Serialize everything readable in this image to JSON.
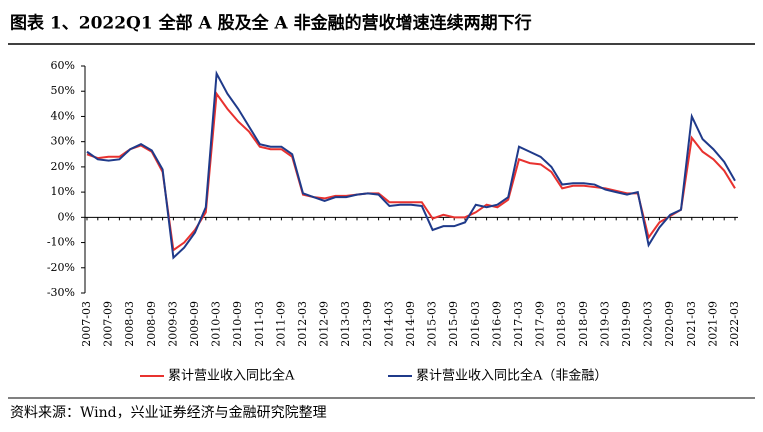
{
  "chart_data": {
    "type": "line",
    "title": "图表 1、2022Q1 全部 A 股及全 A 非金融的营收增速连续两期下行",
    "source": "资料来源：Wind，兴业证券经济与金融研究院整理",
    "categories": [
      "2007-03",
      null,
      "2007-09",
      null,
      "2008-03",
      null,
      "2008-09",
      null,
      "2009-03",
      null,
      "2009-09",
      null,
      "2010-03",
      null,
      "2010-09",
      null,
      "2011-03",
      null,
      "2011-09",
      null,
      "2012-03",
      null,
      "2012-09",
      null,
      "2013-03",
      null,
      "2013-09",
      null,
      "2014-03",
      null,
      "2014-09",
      null,
      "2015-03",
      null,
      "2015-09",
      null,
      "2016-03",
      null,
      "2016-09",
      null,
      "2017-03",
      null,
      "2017-09",
      null,
      "2018-03",
      null,
      "2018-09",
      null,
      "2019-03",
      null,
      "2019-09",
      null,
      "2020-03",
      null,
      "2020-09",
      null,
      "2021-03",
      null,
      "2021-09",
      null,
      "2022-03"
    ],
    "series": [
      {
        "name": "累计营业收入同比全A",
        "color": "#e8322f",
        "values": [
          25,
          23.5,
          24,
          24,
          27,
          28.5,
          26,
          18,
          -13,
          -10,
          -5,
          2,
          49,
          43,
          38,
          34,
          28,
          27,
          27,
          24,
          9,
          8,
          7.5,
          8.5,
          8.5,
          9,
          9.5,
          9.5,
          6,
          6,
          6,
          6,
          -0.5,
          1,
          0,
          0,
          2,
          5,
          4,
          7,
          23,
          21.5,
          21,
          18,
          11.5,
          12.5,
          12.5,
          12,
          11.5,
          10.5,
          9.5,
          9.5,
          -8,
          -2,
          0.5,
          3,
          31.5,
          26,
          23,
          18.5,
          11.5
        ]
      },
      {
        "name": "累计营业收入同比全A（非金融）",
        "color": "#1f3a8a",
        "values": [
          26,
          23,
          22.5,
          23,
          27,
          29,
          26.5,
          19,
          -16,
          -12,
          -6,
          4,
          57,
          49,
          43,
          36,
          29,
          28,
          28,
          25,
          9.5,
          8,
          6.5,
          8,
          8,
          9,
          9.5,
          9,
          4.5,
          5,
          5,
          4.5,
          -5,
          -3.5,
          -3.5,
          -2,
          5,
          4,
          5,
          8,
          28,
          26,
          24,
          20,
          13,
          13.5,
          13.5,
          13,
          11,
          10,
          9,
          10,
          -11,
          -4,
          1,
          3,
          40,
          31,
          27,
          22,
          14.5
        ]
      }
    ],
    "ylim": [
      -30,
      60
    ],
    "yticks": [
      {
        "value": -30,
        "label": "-30%"
      },
      {
        "value": -20,
        "label": "-20%"
      },
      {
        "value": -10,
        "label": "-10%"
      },
      {
        "value": 0,
        "label": "0%"
      },
      {
        "value": 10,
        "label": "10%"
      },
      {
        "value": 20,
        "label": "20%"
      },
      {
        "value": 30,
        "label": "30%"
      },
      {
        "value": 40,
        "label": "40%"
      },
      {
        "value": 50,
        "label": "50%"
      },
      {
        "value": 60,
        "label": "60%"
      }
    ],
    "grid": false
  }
}
